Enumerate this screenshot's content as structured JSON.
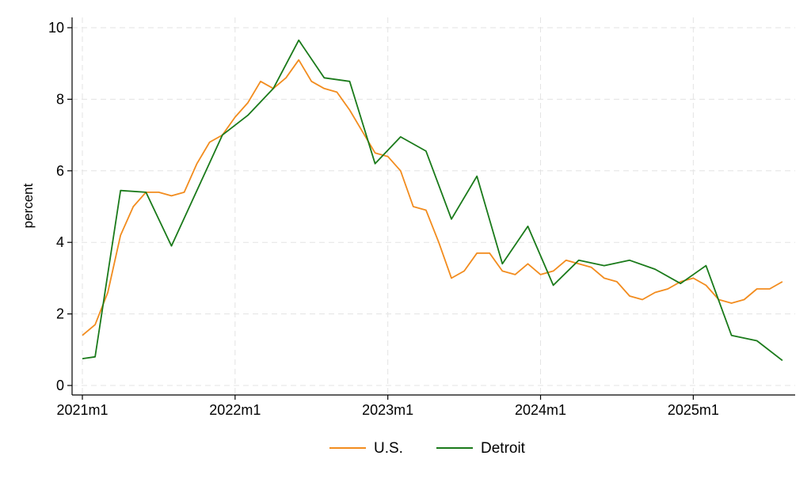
{
  "chart_data": {
    "type": "line",
    "title": "",
    "xlabel": "",
    "ylabel": "percent",
    "ylim": [
      0,
      10
    ],
    "yticks": [
      0,
      2,
      4,
      6,
      8,
      10
    ],
    "x_tick_labels": [
      "2021m1",
      "2022m1",
      "2023m1",
      "2024m1",
      "2025m1"
    ],
    "grid": true,
    "legend_position": "bottom",
    "series": [
      {
        "name": "U.S.",
        "color": "#f28c1e",
        "points": [
          [
            "2021-01",
            1.4
          ],
          [
            "2021-02",
            1.7
          ],
          [
            "2021-03",
            2.6
          ],
          [
            "2021-04",
            4.2
          ],
          [
            "2021-05",
            5.0
          ],
          [
            "2021-06",
            5.4
          ],
          [
            "2021-07",
            5.4
          ],
          [
            "2021-08",
            5.3
          ],
          [
            "2021-09",
            5.4
          ],
          [
            "2021-10",
            6.2
          ],
          [
            "2021-11",
            6.8
          ],
          [
            "2021-12",
            7.0
          ],
          [
            "2022-01",
            7.5
          ],
          [
            "2022-02",
            7.9
          ],
          [
            "2022-03",
            8.5
          ],
          [
            "2022-04",
            8.3
          ],
          [
            "2022-05",
            8.6
          ],
          [
            "2022-06",
            9.1
          ],
          [
            "2022-07",
            8.5
          ],
          [
            "2022-08",
            8.3
          ],
          [
            "2022-09",
            8.2
          ],
          [
            "2022-10",
            7.7
          ],
          [
            "2022-11",
            7.1
          ],
          [
            "2022-12",
            6.5
          ],
          [
            "2023-01",
            6.4
          ],
          [
            "2023-02",
            6.0
          ],
          [
            "2023-03",
            5.0
          ],
          [
            "2023-04",
            4.9
          ],
          [
            "2023-05",
            4.0
          ],
          [
            "2023-06",
            3.0
          ],
          [
            "2023-07",
            3.2
          ],
          [
            "2023-08",
            3.7
          ],
          [
            "2023-09",
            3.7
          ],
          [
            "2023-10",
            3.2
          ],
          [
            "2023-11",
            3.1
          ],
          [
            "2023-12",
            3.4
          ],
          [
            "2024-01",
            3.1
          ],
          [
            "2024-02",
            3.2
          ],
          [
            "2024-03",
            3.5
          ],
          [
            "2024-04",
            3.4
          ],
          [
            "2024-05",
            3.3
          ],
          [
            "2024-06",
            3.0
          ],
          [
            "2024-07",
            2.9
          ],
          [
            "2024-08",
            2.5
          ],
          [
            "2024-09",
            2.4
          ],
          [
            "2024-10",
            2.6
          ],
          [
            "2024-11",
            2.7
          ],
          [
            "2024-12",
            2.9
          ],
          [
            "2025-01",
            3.0
          ],
          [
            "2025-02",
            2.8
          ],
          [
            "2025-03",
            2.4
          ],
          [
            "2025-04",
            2.3
          ],
          [
            "2025-05",
            2.4
          ],
          [
            "2025-06",
            2.7
          ],
          [
            "2025-07",
            2.7
          ],
          [
            "2025-08",
            2.9
          ]
        ]
      },
      {
        "name": "Detroit",
        "color": "#1a7a1a",
        "points": [
          [
            "2021-01",
            0.75
          ],
          [
            "2021-02",
            0.8
          ],
          [
            "2021-04",
            5.45
          ],
          [
            "2021-06",
            5.4
          ],
          [
            "2021-08",
            3.9
          ],
          [
            "2021-12",
            7.0
          ],
          [
            "2022-02",
            7.55
          ],
          [
            "2022-04",
            8.3
          ],
          [
            "2022-06",
            9.65
          ],
          [
            "2022-08",
            8.6
          ],
          [
            "2022-10",
            8.5
          ],
          [
            "2022-12",
            6.2
          ],
          [
            "2023-02",
            6.95
          ],
          [
            "2023-04",
            6.55
          ],
          [
            "2023-06",
            4.65
          ],
          [
            "2023-08",
            5.85
          ],
          [
            "2023-10",
            3.4
          ],
          [
            "2023-12",
            4.45
          ],
          [
            "2024-02",
            2.8
          ],
          [
            "2024-04",
            3.5
          ],
          [
            "2024-06",
            3.35
          ],
          [
            "2024-08",
            3.5
          ],
          [
            "2024-10",
            3.25
          ],
          [
            "2024-12",
            2.85
          ],
          [
            "2025-02",
            3.35
          ],
          [
            "2025-04",
            1.4
          ],
          [
            "2025-06",
            1.25
          ],
          [
            "2025-08",
            0.7
          ]
        ]
      }
    ]
  }
}
